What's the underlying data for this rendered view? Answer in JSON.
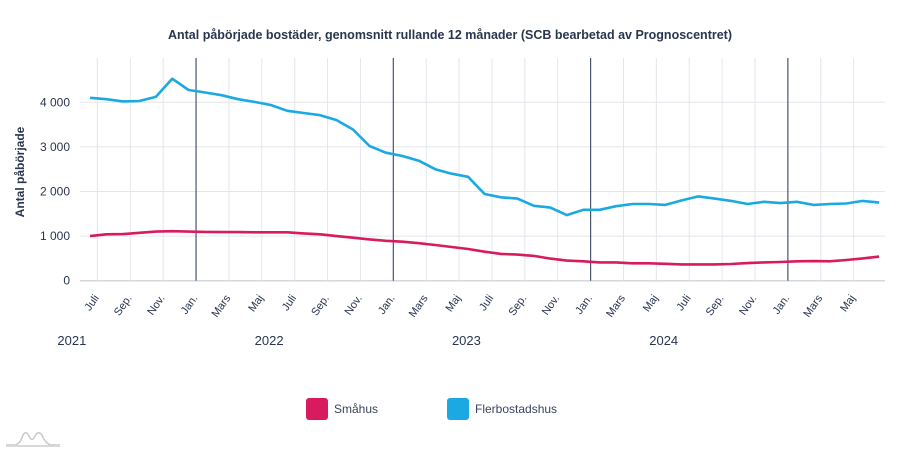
{
  "chart_data": {
    "type": "line",
    "title": "Antal påbörjade bostäder, genomsnitt rullande 12 månader (SCB bearbetad av Prognoscentret)",
    "ylabel": "Antal påbörjade",
    "xlabel": "",
    "ylim": [
      0,
      4900
    ],
    "yticks": [
      0,
      1000,
      2000,
      3000,
      4000
    ],
    "ytick_labels": [
      "0",
      "1 000",
      "2 000",
      "3 000",
      "4 000"
    ],
    "xtick_labels": [
      "Juli",
      "Sep.",
      "Nov.",
      "Jan.",
      "Mars",
      "Maj",
      "Juli",
      "Sep.",
      "Nov.",
      "Jan.",
      "Mars",
      "Maj",
      "Juli",
      "Sep.",
      "Nov.",
      "Jan.",
      "Mars",
      "Maj",
      "Juli",
      "Sep.",
      "Nov.",
      "Jan.",
      "Mars",
      "Maj"
    ],
    "year_labels": [
      "2021",
      "2022",
      "2023",
      "2024"
    ],
    "grid": true,
    "legend_position": "bottom",
    "series": [
      {
        "name": "Småhus",
        "color": "#d81b5e",
        "values": [
          1000,
          1040,
          1045,
          1075,
          1100,
          1110,
          1100,
          1095,
          1090,
          1090,
          1085,
          1085,
          1085,
          1060,
          1040,
          1000,
          965,
          925,
          895,
          875,
          840,
          800,
          755,
          710,
          650,
          600,
          585,
          555,
          495,
          450,
          435,
          410,
          410,
          390,
          390,
          380,
          365,
          365,
          365,
          375,
          395,
          410,
          420,
          435,
          440,
          435,
          465,
          500,
          540
        ]
      },
      {
        "name": "Flerbostadshus",
        "color": "#1ba9e1",
        "values": [
          4100,
          4070,
          4020,
          4030,
          4120,
          4530,
          4275,
          4220,
          4160,
          4070,
          4010,
          3940,
          3810,
          3760,
          3710,
          3600,
          3390,
          3020,
          2870,
          2795,
          2690,
          2500,
          2400,
          2330,
          1945,
          1870,
          1840,
          1680,
          1640,
          1470,
          1590,
          1590,
          1670,
          1720,
          1720,
          1700,
          1800,
          1890,
          1840,
          1790,
          1720,
          1770,
          1740,
          1770,
          1700,
          1720,
          1730,
          1790,
          1750
        ]
      }
    ]
  }
}
